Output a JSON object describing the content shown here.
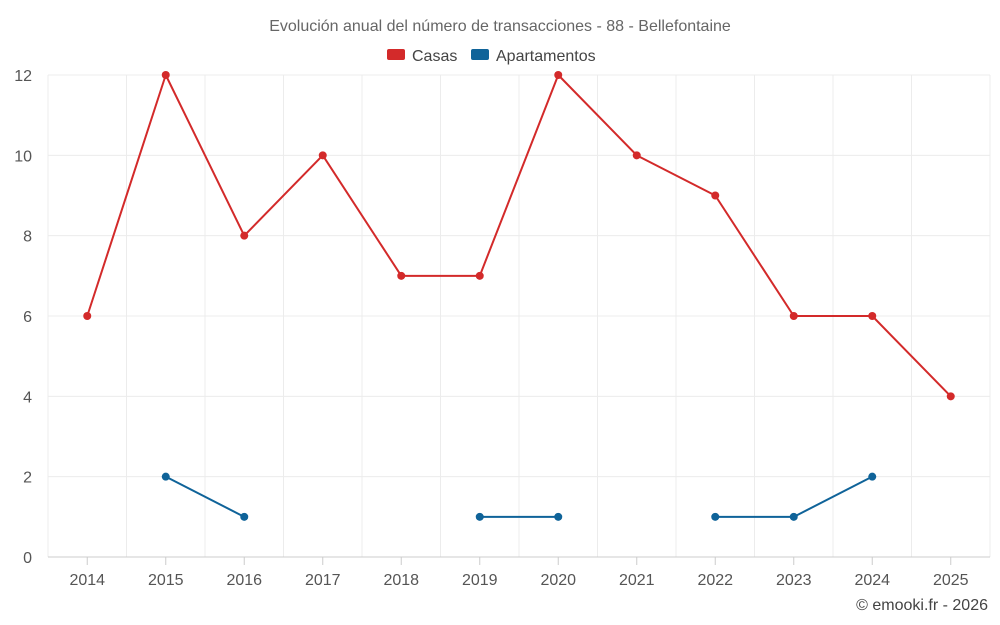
{
  "chart_data": {
    "type": "line",
    "title": "Evolución anual del número de transacciones - 88 - Bellefontaine",
    "categories": [
      "2014",
      "2015",
      "2016",
      "2017",
      "2018",
      "2019",
      "2020",
      "2021",
      "2022",
      "2023",
      "2024",
      "2025"
    ],
    "ylim": [
      0,
      12
    ],
    "yticks": [
      0,
      2,
      4,
      6,
      8,
      10,
      12
    ],
    "grid": true,
    "legend_position": "top-center",
    "series": [
      {
        "name": "Casas",
        "color": "#d32a2a",
        "values": [
          6,
          12,
          8,
          10,
          7,
          7,
          12,
          10,
          9,
          6,
          6,
          4
        ]
      },
      {
        "name": "Apartamentos",
        "color": "#0f6399",
        "values": [
          null,
          2,
          1,
          null,
          null,
          1,
          1,
          null,
          1,
          1,
          2,
          null
        ]
      }
    ],
    "credit": "© emooki.fr - 2026"
  }
}
